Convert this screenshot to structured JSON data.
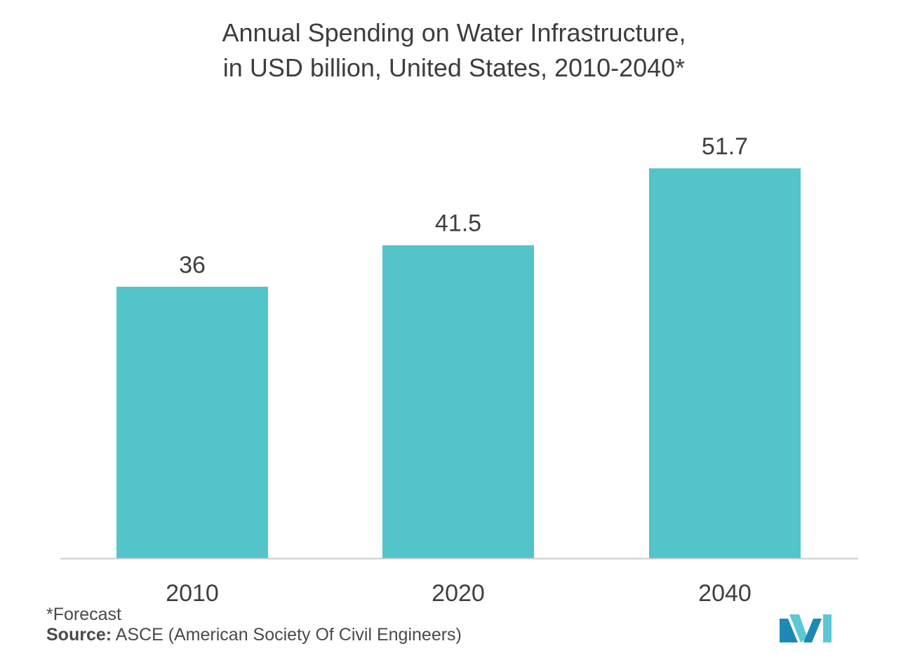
{
  "title": {
    "line1": "Annual Spending on Water Infrastructure,",
    "line2": "in USD billion, United States, 2010-2040*"
  },
  "chart_data": {
    "type": "bar",
    "categories": [
      "2010",
      "2020",
      "2040"
    ],
    "values": [
      36,
      41.5,
      51.7
    ],
    "value_labels": [
      "36",
      "41.5",
      "51.7"
    ],
    "title": "Annual Spending on Water Infrastructure, in USD billion, United States, 2010-2040*",
    "xlabel": "",
    "ylabel": "",
    "ylim": [
      0,
      66
    ],
    "grid": false,
    "bar_color": "#52c4ca",
    "axis_color": "#cccccc"
  },
  "footnote": {
    "forecast": "*Forecast",
    "source_label": "Source:",
    "source_text": " ASCE (American Society Of Civil Engineers)"
  },
  "logo": {
    "icon": "mordor-intelligence-logo-icon",
    "color_dark": "#1e88b4",
    "color_light": "#5bc8d6"
  }
}
